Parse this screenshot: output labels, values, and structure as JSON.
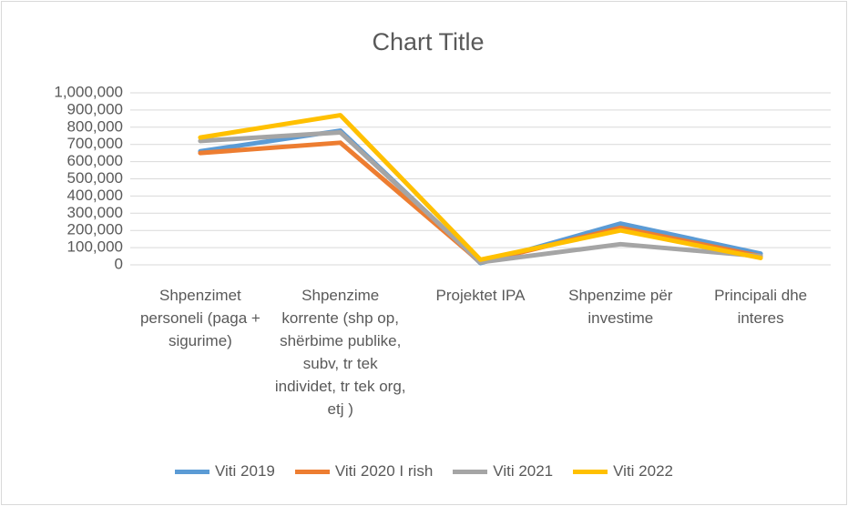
{
  "chart_data": {
    "type": "line",
    "title": "Chart Title",
    "categories": [
      "Shpenzimet personeli (paga + sigurime)",
      "Shpenzime korrente (shp op, shërbime publike, subv, tr tek individet, tr tek org, etj )",
      "Projektet IPA",
      "Shpenzime për investime",
      "Principali dhe interes"
    ],
    "series": [
      {
        "name": "Viti 2019",
        "color": "#5b9bd5",
        "values": [
          660000,
          780000,
          10000,
          240000,
          65000
        ]
      },
      {
        "name": "Viti 2020 I rish",
        "color": "#ed7d31",
        "values": [
          650000,
          710000,
          15000,
          215000,
          50000
        ]
      },
      {
        "name": "Viti 2021",
        "color": "#a5a5a5",
        "values": [
          720000,
          770000,
          15000,
          120000,
          50000
        ]
      },
      {
        "name": "Viti 2022",
        "color": "#ffc000",
        "values": [
          740000,
          870000,
          30000,
          200000,
          40000
        ]
      }
    ],
    "ylim": [
      0,
      1000000
    ],
    "yticks": [
      0,
      {
        "value": 100000,
        "label": "100,000"
      },
      {
        "value": 200000,
        "label": "200,000"
      },
      {
        "value": 300000,
        "label": "300,000"
      },
      {
        "value": 400000,
        "label": "400,000"
      },
      {
        "value": 500000,
        "label": "500,000"
      },
      {
        "value": 600000,
        "label": "600,000"
      },
      {
        "value": 700000,
        "label": "700,000"
      },
      {
        "value": 800000,
        "label": "800,000"
      },
      {
        "value": 900000,
        "label": "900,000"
      },
      {
        "value": 1000000,
        "label": "1,000,000"
      }
    ],
    "grid": true,
    "legend": "bottom"
  }
}
